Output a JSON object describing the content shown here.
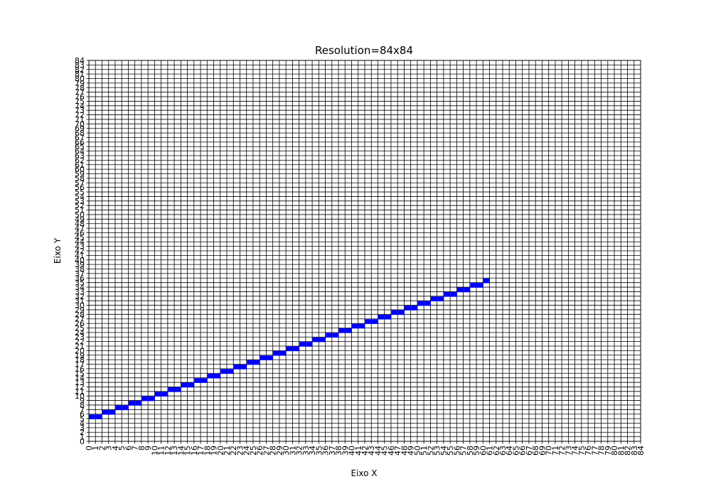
{
  "chart_data": {
    "type": "scatter",
    "title": "Resolution=84x84",
    "xlabel": "Eixo X",
    "ylabel": "Eixo Y",
    "xlim": [
      0,
      84
    ],
    "ylim": [
      0,
      84
    ],
    "grid": true,
    "xticks": [
      0,
      1,
      2,
      3,
      4,
      5,
      6,
      7,
      8,
      9,
      10,
      11,
      12,
      13,
      14,
      15,
      16,
      17,
      18,
      19,
      20,
      21,
      22,
      23,
      24,
      25,
      26,
      27,
      28,
      29,
      30,
      31,
      32,
      33,
      34,
      35,
      36,
      37,
      38,
      39,
      40,
      41,
      42,
      43,
      44,
      45,
      46,
      47,
      48,
      49,
      50,
      51,
      52,
      53,
      54,
      55,
      56,
      57,
      58,
      59,
      60,
      61,
      62,
      63,
      64,
      65,
      66,
      67,
      68,
      69,
      70,
      71,
      72,
      73,
      74,
      75,
      76,
      77,
      78,
      79,
      80,
      81,
      82,
      83,
      84
    ],
    "yticks": [
      0,
      1,
      2,
      3,
      4,
      5,
      6,
      7,
      8,
      9,
      10,
      11,
      12,
      13,
      14,
      15,
      16,
      17,
      18,
      19,
      20,
      21,
      22,
      23,
      24,
      25,
      26,
      27,
      28,
      29,
      30,
      31,
      32,
      33,
      34,
      35,
      36,
      37,
      38,
      39,
      40,
      41,
      42,
      43,
      44,
      45,
      46,
      47,
      48,
      49,
      50,
      51,
      52,
      53,
      54,
      55,
      56,
      57,
      58,
      59,
      60,
      61,
      62,
      63,
      64,
      65,
      66,
      67,
      68,
      69,
      70,
      71,
      72,
      73,
      74,
      75,
      76,
      77,
      78,
      79,
      80,
      81,
      82,
      83,
      84
    ],
    "series": [
      {
        "color": "#0000ff",
        "points": [
          [
            0,
            5
          ],
          [
            1,
            5
          ],
          [
            2,
            6
          ],
          [
            3,
            6
          ],
          [
            4,
            7
          ],
          [
            5,
            7
          ],
          [
            6,
            8
          ],
          [
            7,
            8
          ],
          [
            8,
            9
          ],
          [
            9,
            9
          ],
          [
            10,
            10
          ],
          [
            11,
            10
          ],
          [
            12,
            11
          ],
          [
            13,
            11
          ],
          [
            14,
            12
          ],
          [
            15,
            12
          ],
          [
            16,
            13
          ],
          [
            17,
            13
          ],
          [
            18,
            14
          ],
          [
            19,
            14
          ],
          [
            20,
            15
          ],
          [
            21,
            15
          ],
          [
            22,
            16
          ],
          [
            23,
            16
          ],
          [
            24,
            17
          ],
          [
            25,
            17
          ],
          [
            26,
            18
          ],
          [
            27,
            18
          ],
          [
            28,
            19
          ],
          [
            29,
            19
          ],
          [
            30,
            20
          ],
          [
            31,
            20
          ],
          [
            32,
            21
          ],
          [
            33,
            21
          ],
          [
            34,
            22
          ],
          [
            35,
            22
          ],
          [
            36,
            23
          ],
          [
            37,
            23
          ],
          [
            38,
            24
          ],
          [
            39,
            24
          ],
          [
            40,
            25
          ],
          [
            41,
            25
          ],
          [
            42,
            26
          ],
          [
            43,
            26
          ],
          [
            44,
            27
          ],
          [
            45,
            27
          ],
          [
            46,
            28
          ],
          [
            47,
            28
          ],
          [
            48,
            29
          ],
          [
            49,
            29
          ],
          [
            50,
            30
          ],
          [
            51,
            30
          ],
          [
            52,
            31
          ],
          [
            53,
            31
          ],
          [
            54,
            32
          ],
          [
            55,
            32
          ],
          [
            56,
            33
          ],
          [
            57,
            33
          ],
          [
            58,
            34
          ],
          [
            59,
            34
          ],
          [
            60,
            35
          ]
        ]
      }
    ]
  }
}
